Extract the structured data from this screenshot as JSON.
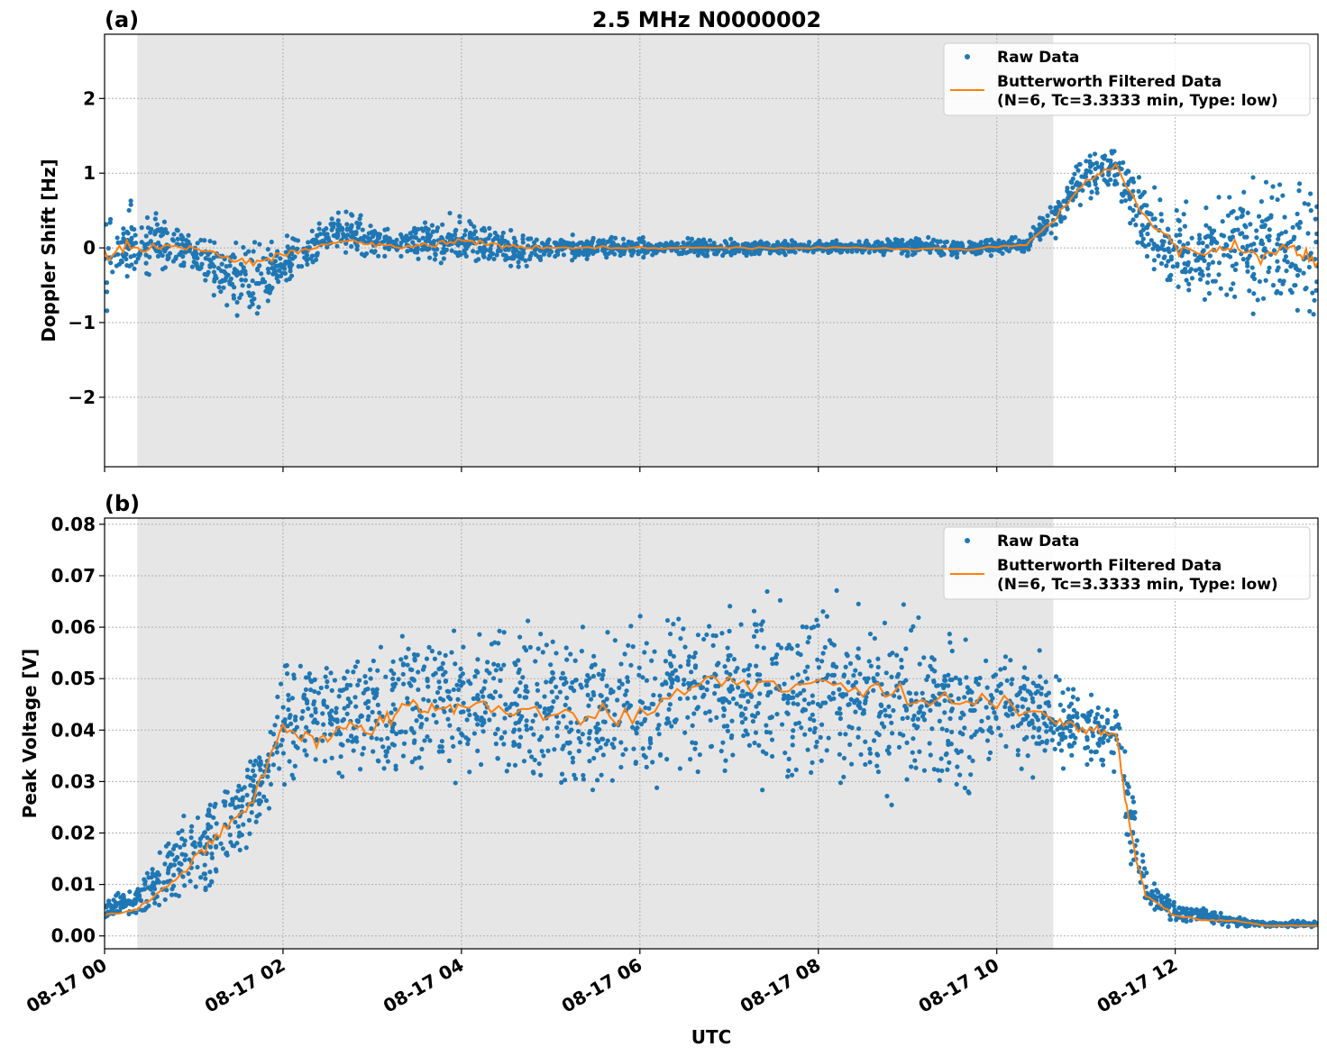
{
  "title": "2.5 MHz N0000002",
  "xlabel": "UTC",
  "x_ticks": [
    "08-17 00",
    "08-17 02",
    "08-17 04",
    "08-17 06",
    "08-17 08",
    "08-17 10",
    "08-17 12"
  ],
  "legend": {
    "raw": "Raw Data",
    "filt1": "Butterworth Filtered Data",
    "filt2": "(N=6, Tc=3.3333 min, Type: low)"
  },
  "colors": {
    "raw": "#1f77b4",
    "filtered": "#ff7f0e",
    "shade": "#e6e6e6"
  },
  "chart_data": [
    {
      "type": "scatter+line",
      "panel": "(a)",
      "ylabel": "Doppler Shift [Hz]",
      "date": "08-17",
      "xlim": [
        "00:00",
        "13:36"
      ],
      "ylim": [
        -2.93,
        2.86
      ],
      "y_ticks": [
        "−2",
        "−1",
        "0",
        "1",
        "2"
      ],
      "y_tick_values": [
        -2,
        -1,
        0,
        1,
        2
      ],
      "grid": true,
      "legend": "top-right",
      "shaded_interval": [
        "00:22",
        "10:38"
      ],
      "x": [
        "00:00",
        "00:20",
        "00:40",
        "01:00",
        "01:20",
        "01:40",
        "02:00",
        "02:20",
        "02:40",
        "03:00",
        "03:20",
        "03:40",
        "04:00",
        "04:20",
        "04:40",
        "05:00",
        "05:40",
        "06:20",
        "07:00",
        "07:40",
        "08:20",
        "09:00",
        "09:40",
        "10:20",
        "10:40",
        "11:00",
        "11:20",
        "11:40",
        "12:00",
        "12:20",
        "12:40",
        "13:00",
        "13:20",
        "13:36"
      ],
      "filtered": [
        -0.05,
        0.0,
        0.0,
        0.0,
        -0.1,
        -0.2,
        -0.1,
        0.0,
        0.1,
        0.05,
        0.0,
        0.05,
        0.1,
        0.05,
        0.0,
        0.0,
        0.0,
        0.0,
        0.0,
        0.0,
        0.0,
        -0.02,
        -0.02,
        0.05,
        0.4,
        0.9,
        1.1,
        0.4,
        0.0,
        -0.05,
        0.0,
        -0.1,
        0.0,
        -0.2
      ],
      "raw_low": [
        -1.0,
        -0.5,
        -0.4,
        -0.3,
        -0.9,
        -1.2,
        -0.6,
        -0.3,
        -0.2,
        -0.2,
        -0.2,
        -0.3,
        -0.3,
        -0.3,
        -0.3,
        -0.2,
        -0.2,
        -0.15,
        -0.15,
        -0.1,
        -0.1,
        -0.15,
        -0.15,
        -0.1,
        0.1,
        0.5,
        0.6,
        -0.3,
        -0.9,
        -0.9,
        -1.0,
        -1.1,
        -1.3,
        -1.6
      ],
      "raw_high": [
        0.8,
        0.7,
        0.5,
        0.2,
        0.15,
        0.2,
        0.2,
        0.3,
        0.7,
        0.4,
        0.3,
        0.5,
        0.5,
        0.4,
        0.25,
        0.2,
        0.2,
        0.15,
        0.15,
        0.12,
        0.12,
        0.2,
        0.15,
        0.2,
        0.8,
        1.4,
        1.5,
        1.0,
        0.8,
        0.8,
        1.0,
        1.1,
        1.2,
        1.4
      ]
    },
    {
      "type": "scatter+line",
      "panel": "(b)",
      "ylabel": "Peak Voltage [V]",
      "date": "08-17",
      "xlim": [
        "00:00",
        "13:36"
      ],
      "ylim": [
        -0.0025,
        0.0812
      ],
      "y_ticks": [
        "0.00",
        "0.01",
        "0.02",
        "0.03",
        "0.04",
        "0.05",
        "0.06",
        "0.07",
        "0.08"
      ],
      "y_tick_values": [
        0,
        0.01,
        0.02,
        0.03,
        0.04,
        0.05,
        0.06,
        0.07,
        0.08
      ],
      "grid": true,
      "legend": "top-right",
      "shaded_interval": [
        "00:22",
        "10:38"
      ],
      "x": [
        "00:00",
        "00:20",
        "00:40",
        "01:00",
        "01:20",
        "01:40",
        "02:00",
        "02:20",
        "02:40",
        "03:00",
        "03:20",
        "03:40",
        "04:00",
        "04:40",
        "05:20",
        "06:00",
        "06:40",
        "07:20",
        "08:00",
        "08:40",
        "09:20",
        "10:00",
        "10:40",
        "11:00",
        "11:20",
        "11:30",
        "11:40",
        "12:00",
        "12:20",
        "12:40",
        "13:00",
        "13:36"
      ],
      "filtered": [
        0.004,
        0.005,
        0.009,
        0.015,
        0.02,
        0.027,
        0.04,
        0.038,
        0.04,
        0.04,
        0.045,
        0.044,
        0.045,
        0.044,
        0.042,
        0.043,
        0.05,
        0.048,
        0.05,
        0.047,
        0.045,
        0.045,
        0.042,
        0.04,
        0.04,
        0.02,
        0.008,
        0.004,
        0.003,
        0.003,
        0.002,
        0.002
      ],
      "raw_low": [
        0.003,
        0.003,
        0.004,
        0.005,
        0.008,
        0.015,
        0.025,
        0.027,
        0.025,
        0.025,
        0.027,
        0.028,
        0.028,
        0.025,
        0.022,
        0.022,
        0.027,
        0.025,
        0.025,
        0.022,
        0.022,
        0.028,
        0.03,
        0.03,
        0.03,
        0.01,
        0.004,
        0.002,
        0.002,
        0.0015,
        0.0015,
        0.0015
      ],
      "raw_high": [
        0.008,
        0.01,
        0.02,
        0.028,
        0.035,
        0.042,
        0.055,
        0.058,
        0.06,
        0.062,
        0.065,
        0.065,
        0.063,
        0.065,
        0.065,
        0.066,
        0.07,
        0.068,
        0.07,
        0.068,
        0.066,
        0.062,
        0.055,
        0.05,
        0.05,
        0.035,
        0.015,
        0.007,
        0.006,
        0.004,
        0.003,
        0.003
      ]
    }
  ]
}
